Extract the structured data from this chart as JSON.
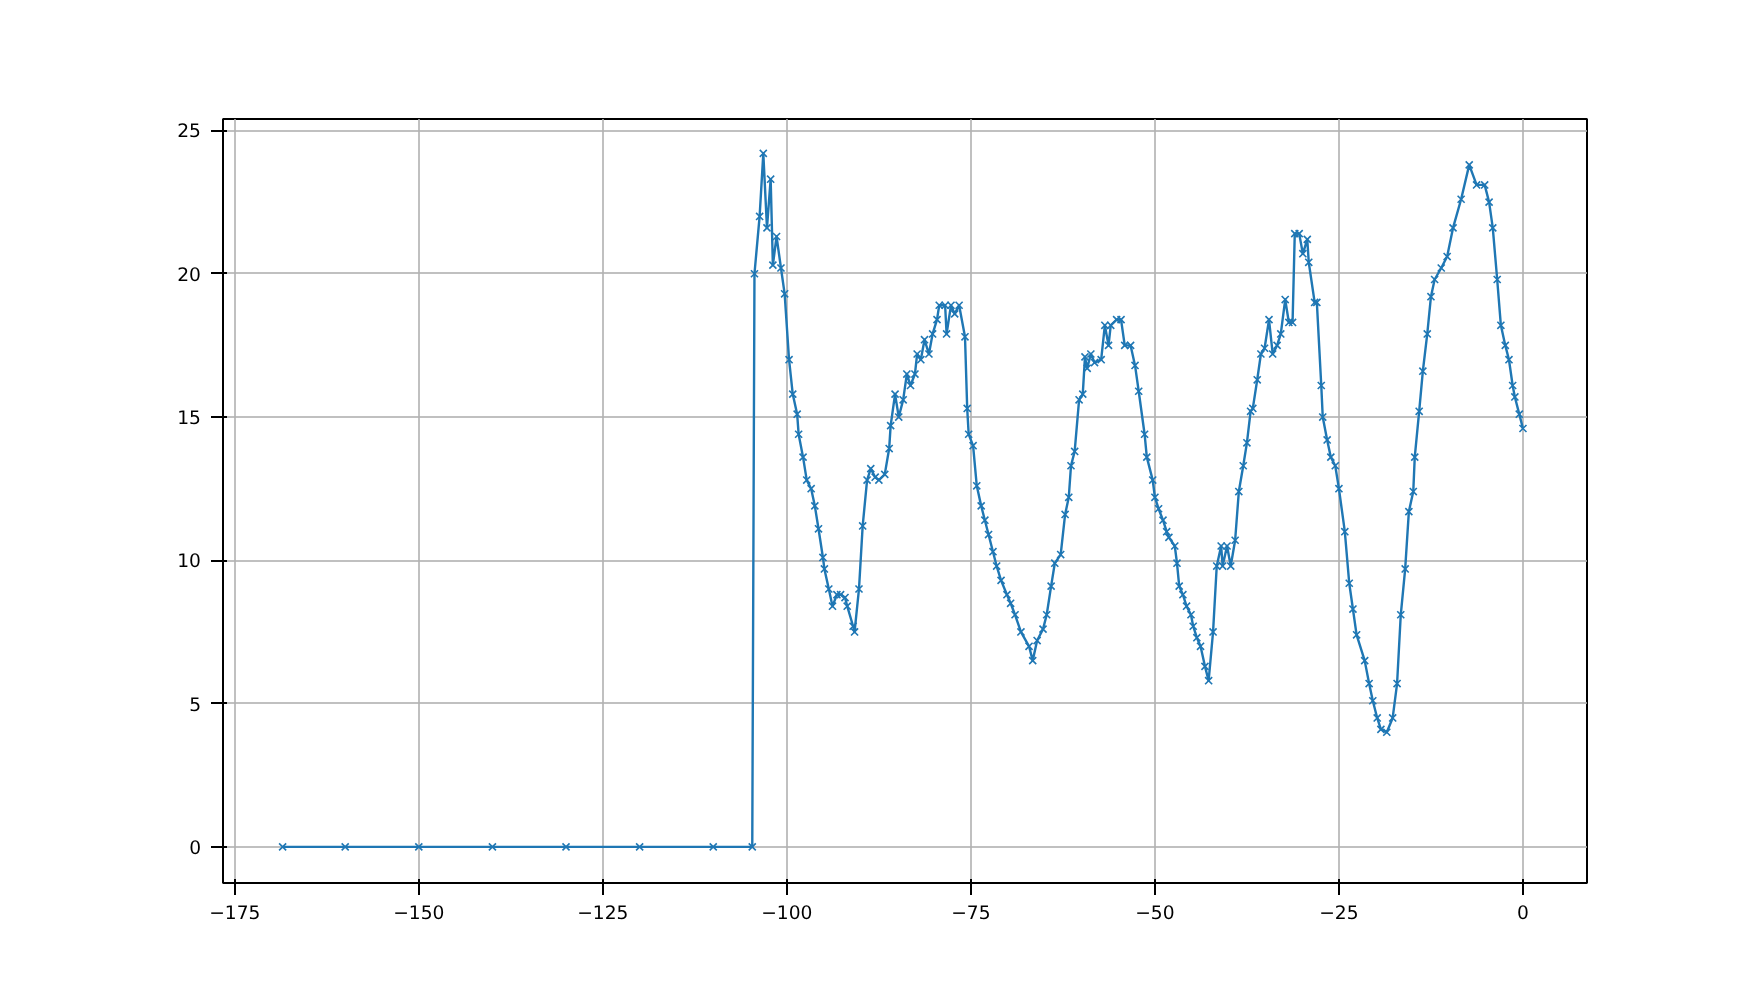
{
  "chart_data": {
    "type": "line",
    "marker": "cross",
    "line_style": "solid",
    "grid": true,
    "xlim": [
      -176.6,
      8.7
    ],
    "ylim": [
      -1.26,
      25.4
    ],
    "xticks": [
      -175,
      -150,
      -125,
      -100,
      -75,
      -50,
      -25,
      0
    ],
    "yticks": [
      0,
      5,
      10,
      15,
      20,
      25
    ],
    "series": [
      {
        "color": "#1f77b4",
        "x": [
          -168.5,
          -160,
          -150,
          -140,
          -130,
          -120,
          -110,
          -104.7,
          -104.4,
          -103.7,
          -103.2,
          -102.7,
          -102.2,
          -101.9,
          -101.4,
          -100.8,
          -100.3,
          -99.7,
          -99.2,
          -98.6,
          -98.4,
          -97.8,
          -97.3,
          -96.7,
          -96.2,
          -95.7,
          -95.1,
          -94.9,
          -94.3,
          -93.8,
          -93.2,
          -92.7,
          -92.1,
          -91.8,
          -91.0,
          -90.8,
          -90.2,
          -89.7,
          -89.1,
          -88.6,
          -88.0,
          -87.5,
          -86.7,
          -86.1,
          -85.9,
          -85.3,
          -84.8,
          -84.2,
          -83.7,
          -83.2,
          -82.6,
          -82.3,
          -81.8,
          -81.3,
          -80.7,
          -80.2,
          -79.6,
          -79.3,
          -78.5,
          -78.3,
          -77.7,
          -77.2,
          -76.6,
          -75.8,
          -75.5,
          -75.3,
          -74.7,
          -74.2,
          -73.6,
          -73.1,
          -72.6,
          -72.0,
          -71.5,
          -70.9,
          -70.1,
          -69.6,
          -69.0,
          -68.2,
          -67.1,
          -66.6,
          -66.0,
          -65.2,
          -64.7,
          -64.1,
          -63.6,
          -62.8,
          -62.2,
          -61.7,
          -61.4,
          -60.9,
          -60.3,
          -59.8,
          -59.5,
          -59.2,
          -58.7,
          -58.2,
          -57.3,
          -56.8,
          -56.3,
          -56.0,
          -55.2,
          -54.6,
          -54.1,
          -53.3,
          -52.7,
          -52.2,
          -51.4,
          -51.1,
          -50.3,
          -50.0,
          -49.5,
          -48.9,
          -48.4,
          -48.1,
          -47.3,
          -47.0,
          -46.7,
          -46.2,
          -45.7,
          -45.1,
          -44.8,
          -44.3,
          -43.8,
          -43.2,
          -42.7,
          -42.1,
          -41.6,
          -41.0,
          -40.8,
          -40.2,
          -39.7,
          -39.1,
          -38.6,
          -38.0,
          -37.5,
          -37.0,
          -36.7,
          -36.1,
          -35.6,
          -35.1,
          -34.5,
          -34.0,
          -33.4,
          -32.9,
          -32.3,
          -31.8,
          -31.3,
          -31.0,
          -30.4,
          -29.9,
          -29.3,
          -29.1,
          -28.3,
          -28.0,
          -27.4,
          -27.2,
          -26.6,
          -26.1,
          -25.5,
          -25.0,
          -24.2,
          -23.6,
          -23.1,
          -22.6,
          -21.5,
          -20.9,
          -20.4,
          -19.8,
          -19.3,
          -18.5,
          -17.7,
          -17.1,
          -16.6,
          -16.0,
          -15.5,
          -14.9,
          -14.7,
          -14.1,
          -13.6,
          -13.0,
          -12.5,
          -12.0,
          -11.1,
          -10.3,
          -9.5,
          -8.4,
          -7.3,
          -6.3,
          -5.2,
          -4.6,
          -4.1,
          -3.5,
          -3.0,
          -2.4,
          -1.9,
          -1.4,
          -1.1,
          -0.5,
          0
        ],
        "values": [
          0,
          0,
          0,
          0,
          0,
          0,
          0,
          0,
          20.0,
          22.0,
          24.2,
          21.6,
          23.3,
          20.3,
          21.3,
          20.2,
          19.3,
          17.0,
          15.8,
          15.1,
          14.4,
          13.6,
          12.8,
          12.5,
          11.9,
          11.1,
          10.1,
          9.7,
          9.0,
          8.4,
          8.8,
          8.8,
          8.7,
          8.4,
          7.7,
          7.5,
          9.0,
          11.2,
          12.8,
          13.2,
          12.9,
          12.8,
          13.0,
          13.9,
          14.7,
          15.8,
          15.0,
          15.6,
          16.5,
          16.1,
          16.5,
          17.2,
          17.0,
          17.7,
          17.2,
          17.9,
          18.4,
          18.9,
          18.9,
          17.9,
          18.9,
          18.6,
          18.9,
          17.8,
          15.3,
          14.4,
          14.0,
          12.6,
          11.9,
          11.4,
          10.9,
          10.3,
          9.8,
          9.3,
          8.8,
          8.5,
          8.1,
          7.5,
          7.0,
          6.5,
          7.2,
          7.6,
          8.1,
          9.1,
          9.9,
          10.2,
          11.6,
          12.2,
          13.3,
          13.8,
          15.6,
          15.8,
          17.1,
          16.7,
          17.2,
          16.9,
          17.0,
          18.2,
          17.5,
          18.2,
          18.4,
          18.4,
          17.5,
          17.5,
          16.8,
          15.9,
          14.4,
          13.6,
          12.8,
          12.2,
          11.8,
          11.4,
          11.0,
          10.8,
          10.5,
          9.9,
          9.1,
          8.8,
          8.4,
          8.1,
          7.7,
          7.3,
          7.0,
          6.3,
          5.8,
          7.5,
          9.8,
          10.5,
          9.8,
          10.5,
          9.8,
          10.7,
          12.4,
          13.3,
          14.1,
          15.2,
          15.3,
          16.3,
          17.2,
          17.4,
          18.4,
          17.2,
          17.5,
          17.9,
          19.1,
          18.3,
          18.3,
          21.4,
          21.4,
          20.7,
          21.2,
          20.4,
          19.0,
          19.0,
          16.1,
          15.0,
          14.2,
          13.6,
          13.3,
          12.5,
          11.0,
          9.2,
          8.3,
          7.4,
          6.5,
          5.7,
          5.1,
          4.5,
          4.1,
          4.0,
          4.5,
          5.7,
          8.1,
          9.7,
          11.7,
          12.4,
          13.6,
          15.2,
          16.6,
          17.9,
          19.2,
          19.8,
          20.2,
          20.6,
          21.6,
          22.6,
          23.8,
          23.1,
          23.1,
          22.5,
          21.6,
          19.8,
          18.2,
          17.5,
          17.0,
          16.1,
          15.7,
          15.1,
          14.6
        ]
      }
    ]
  }
}
